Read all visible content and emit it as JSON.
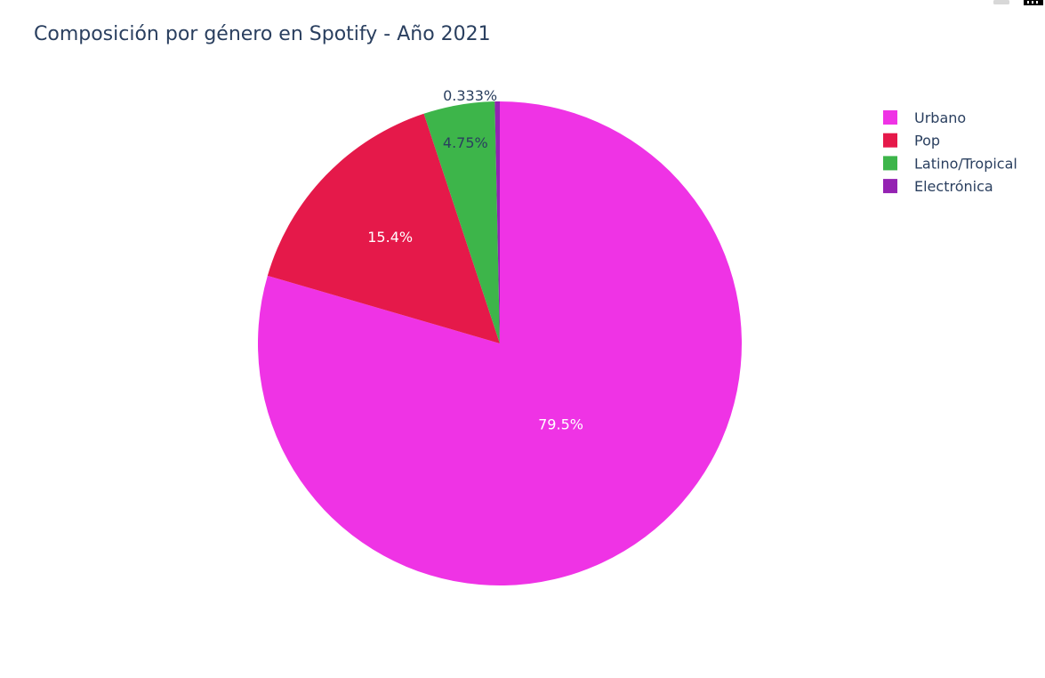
{
  "chart_data": {
    "type": "pie",
    "title": "Composición por género en Spotify - Año 2021",
    "slices": [
      {
        "label": "Urbano",
        "value": 79.5,
        "text": "79.5%",
        "color": "#ef33e5",
        "text_color": "#ffffff"
      },
      {
        "label": "Pop",
        "value": 15.4,
        "text": "15.4%",
        "color": "#e5194a",
        "text_color": "#ffffff"
      },
      {
        "label": "Latino/Tropical",
        "value": 4.75,
        "text": "4.75%",
        "color": "#3db54a",
        "text_color": "#2a3f5f"
      },
      {
        "label": "Electrónica",
        "value": 0.333,
        "text": "0.333%",
        "color": "#9422b2",
        "text_color": "#2a3f5f"
      }
    ],
    "direction": "clockwise",
    "start_angle": "top",
    "legend_position": "top-right"
  },
  "modebar": {
    "icons": [
      "camera-icon",
      "plotly-logo-icon"
    ]
  }
}
